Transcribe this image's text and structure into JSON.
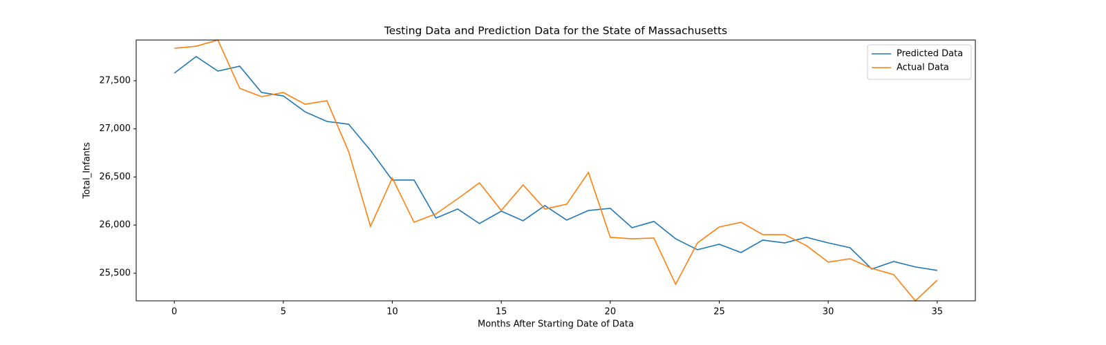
{
  "chart_data": {
    "type": "line",
    "title": "Testing Data and Prediction Data for the State of Massachusetts",
    "x_label": "Months After Starting Date of Data",
    "y_label": "Total_Infants",
    "x": [
      0,
      1,
      2,
      3,
      4,
      5,
      6,
      7,
      8,
      9,
      10,
      11,
      12,
      13,
      14,
      15,
      16,
      17,
      18,
      19,
      20,
      21,
      22,
      23,
      24,
      25,
      26,
      27,
      28,
      29,
      30,
      31,
      32,
      33,
      34,
      35
    ],
    "series": [
      {
        "name": "Predicted Data",
        "color": "#1f77b4",
        "values": [
          27579,
          27751,
          27600,
          27651,
          27378,
          27342,
          27177,
          27077,
          27048,
          26776,
          26468,
          26468,
          26073,
          26167,
          26016,
          26145,
          26045,
          26203,
          26052,
          26152,
          26174,
          25973,
          26038,
          25858,
          25744,
          25801,
          25715,
          25844,
          25815,
          25873,
          25815,
          25765,
          25543,
          25622,
          25565,
          25529
        ]
      },
      {
        "name": "Actual Data",
        "color": "#ff7f0e",
        "values": [
          27837,
          27858,
          27923,
          27421,
          27335,
          27378,
          27256,
          27292,
          26762,
          25987,
          26489,
          26030,
          26116,
          26274,
          26439,
          26152,
          26418,
          26167,
          26217,
          26547,
          25873,
          25858,
          25866,
          25385,
          25815,
          25980,
          26030,
          25901,
          25901,
          25787,
          25615,
          25651,
          25550,
          25486,
          25213,
          25428
        ]
      }
    ],
    "xlim": [
      -1.75,
      36.75
    ],
    "xticks": [
      0,
      5,
      10,
      15,
      20,
      25,
      30,
      35
    ],
    "ylim": [
      25213,
      27923
    ],
    "yticks": [
      {
        "value": 25500,
        "label": "25,500"
      },
      {
        "value": 26000,
        "label": "26,000"
      },
      {
        "value": 26500,
        "label": "26,500"
      },
      {
        "value": 27000,
        "label": "27,000"
      },
      {
        "value": 27500,
        "label": "27,500"
      }
    ],
    "legend": "upper right"
  }
}
